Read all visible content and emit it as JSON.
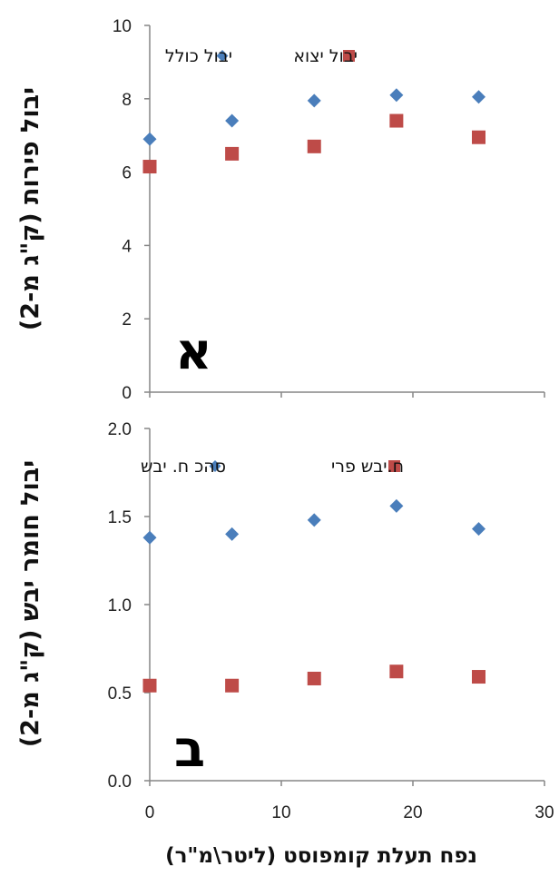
{
  "chart_data": [
    {
      "type": "scatter",
      "panel_label": "א",
      "ylabel": "יבול פירות (ק\"ג מ-2)",
      "ylim": [
        0,
        10
      ],
      "yticks": [
        "0",
        "2",
        "4",
        "6",
        "8",
        "10"
      ],
      "xlim": [
        0,
        30
      ],
      "x": [
        0,
        6.25,
        12.5,
        18.75,
        25
      ],
      "series": [
        {
          "name": "יבול כולל",
          "marker": "diamond",
          "color": "#4A7EBB",
          "values": [
            6.9,
            7.4,
            7.95,
            8.1,
            8.05
          ]
        },
        {
          "name": "יבול יצוא",
          "marker": "square",
          "color": "#BE4B48",
          "values": [
            6.15,
            6.5,
            6.7,
            7.4,
            6.95
          ]
        }
      ]
    },
    {
      "type": "scatter",
      "panel_label": "ב",
      "ylabel": "יבול חומר יבש (ק\"ג מ-2)",
      "ylim": [
        0,
        2
      ],
      "yticks": [
        "0.0",
        "0.5",
        "1.0",
        "1.5",
        "2.0"
      ],
      "xlim": [
        0,
        30
      ],
      "xticks": [
        "0",
        "10",
        "20",
        "30"
      ],
      "xlabel": "נפח תעלת קומפוסט (ליטר\\מ\"ר)",
      "x": [
        0,
        6.25,
        12.5,
        18.75,
        25
      ],
      "series": [
        {
          "name": "סהכ ח. יבש",
          "marker": "diamond",
          "color": "#4A7EBB",
          "values": [
            1.38,
            1.4,
            1.48,
            1.56,
            1.43
          ]
        },
        {
          "name": "ח.יבש פרי",
          "marker": "square",
          "color": "#BE4B48",
          "values": [
            0.54,
            0.54,
            0.58,
            0.62,
            0.59
          ]
        }
      ]
    }
  ]
}
